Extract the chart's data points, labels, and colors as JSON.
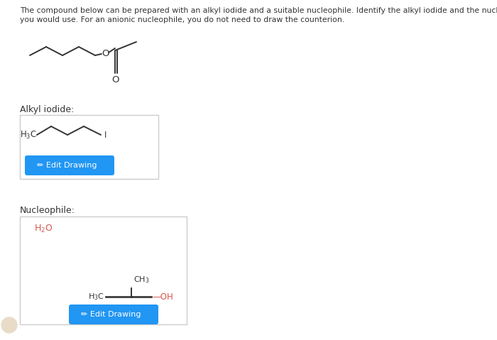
{
  "background_color": "#ffffff",
  "text_color": "#333333",
  "header_text": "The compound below can be prepared with an alkyl iodide and a suitable nucleophile. Identify the alkyl iodide and the nucleophile that",
  "header_text2": "you would use. For an anionic nucleophile, you do not need to draw the counterion.",
  "alkyl_iodide_label": "Alkyl iodide:",
  "nucleophile_label": "Nucleophile:",
  "button_color": "#2196F3",
  "button_text": "  Edit Drawing",
  "button_text_color": "#ffffff",
  "box_border_color": "#cccccc",
  "h2o_color": "#d9534f",
  "oh_color": "#d9534f",
  "molecule_color": "#333333",
  "lw": 1.4
}
